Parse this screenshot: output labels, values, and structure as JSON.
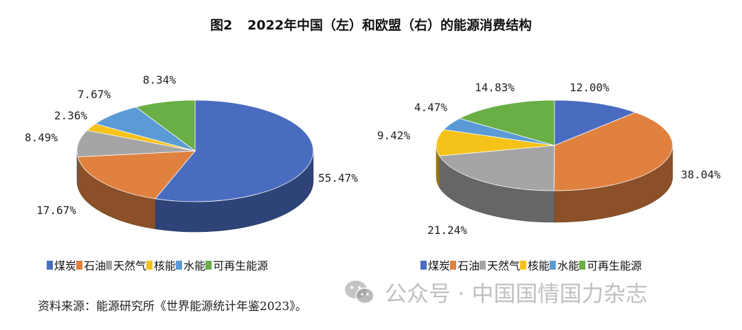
{
  "title": {
    "prefix": "图2",
    "text": "2022年中国（左）和欧盟（右）的能源消费结构"
  },
  "categories": [
    "煤炭",
    "石油",
    "天然气",
    "核能",
    "水能",
    "可再生能源"
  ],
  "colors": [
    "#4a6cc0",
    "#e0813f",
    "#a5a5a5",
    "#f5c21a",
    "#5b9bd5",
    "#6aaf46"
  ],
  "chart_data": [
    {
      "type": "pie",
      "style": "3d",
      "name": "中国",
      "categories": [
        "煤炭",
        "石油",
        "天然气",
        "核能",
        "水能",
        "可再生能源"
      ],
      "values": [
        55.47,
        17.67,
        8.49,
        2.36,
        7.67,
        8.34
      ],
      "labels": [
        "55.47%",
        "17.67%",
        "8.49%",
        "2.36%",
        "7.67%",
        "8.34%"
      ],
      "legend": "bottom"
    },
    {
      "type": "pie",
      "style": "3d",
      "name": "欧盟",
      "categories": [
        "煤炭",
        "石油",
        "天然气",
        "核能",
        "水能",
        "可再生能源"
      ],
      "values": [
        12.0,
        38.04,
        21.24,
        9.42,
        4.47,
        14.83
      ],
      "labels": [
        "12.00%",
        "38.04%",
        "21.24%",
        "9.42%",
        "4.47%",
        "14.83%"
      ],
      "legend": "bottom"
    }
  ],
  "source": "资料来源：能源研究所《世界能源统计年鉴2023》。",
  "watermark": "公众号 · 中国国情国力杂志"
}
